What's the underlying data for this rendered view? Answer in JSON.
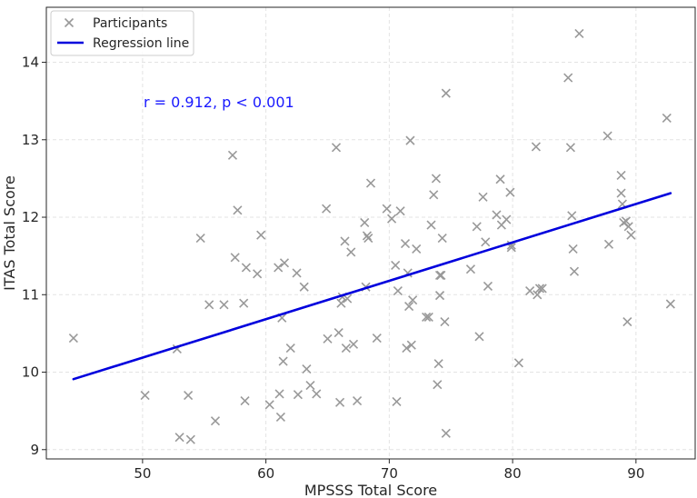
{
  "chart_data": {
    "type": "scatter",
    "xlabel": "MPSSS Total Score",
    "ylabel": "ITAS Total Score",
    "xlim": [
      42.2,
      94.8
    ],
    "ylim": [
      8.88,
      14.71
    ],
    "xticks": [
      50,
      60,
      70,
      80,
      90
    ],
    "yticks": [
      9,
      10,
      11,
      12,
      13,
      14
    ],
    "grid": true,
    "legend_position": "top-left",
    "annotation": "r = 0.912, p < 0.001",
    "colors": {
      "points": "#999999",
      "line": "#0000dd",
      "annotation": "#1a1aff"
    },
    "series": [
      {
        "name": "Participants",
        "marker": "x",
        "points": [
          [
            44.4,
            10.44
          ],
          [
            50.2,
            9.7
          ],
          [
            52.8,
            10.3
          ],
          [
            53.0,
            9.16
          ],
          [
            53.7,
            9.7
          ],
          [
            53.9,
            9.13
          ],
          [
            54.7,
            11.73
          ],
          [
            55.4,
            10.87
          ],
          [
            55.9,
            9.37
          ],
          [
            56.6,
            10.87
          ],
          [
            57.3,
            12.8
          ],
          [
            57.5,
            11.48
          ],
          [
            57.7,
            12.09
          ],
          [
            58.2,
            10.89
          ],
          [
            58.3,
            9.63
          ],
          [
            58.4,
            11.35
          ],
          [
            59.3,
            11.27
          ],
          [
            59.6,
            11.77
          ],
          [
            60.3,
            9.58
          ],
          [
            61.0,
            11.35
          ],
          [
            61.1,
            9.72
          ],
          [
            61.2,
            9.42
          ],
          [
            61.3,
            10.7
          ],
          [
            61.4,
            10.14
          ],
          [
            61.5,
            11.41
          ],
          [
            62.0,
            10.31
          ],
          [
            62.5,
            11.28
          ],
          [
            62.6,
            9.71
          ],
          [
            63.1,
            11.1
          ],
          [
            63.3,
            10.04
          ],
          [
            63.6,
            9.83
          ],
          [
            64.1,
            9.72
          ],
          [
            64.9,
            12.11
          ],
          [
            65.0,
            10.43
          ],
          [
            65.7,
            12.9
          ],
          [
            65.9,
            10.51
          ],
          [
            66.0,
            9.61
          ],
          [
            66.1,
            10.89
          ],
          [
            66.2,
            10.97
          ],
          [
            66.4,
            11.69
          ],
          [
            66.5,
            10.31
          ],
          [
            66.6,
            10.95
          ],
          [
            66.9,
            11.55
          ],
          [
            67.1,
            10.36
          ],
          [
            67.4,
            9.63
          ],
          [
            68.0,
            11.93
          ],
          [
            68.1,
            11.1
          ],
          [
            68.2,
            11.76
          ],
          [
            68.3,
            11.73
          ],
          [
            68.5,
            12.44
          ],
          [
            69.0,
            10.44
          ],
          [
            69.8,
            12.11
          ],
          [
            70.2,
            11.98
          ],
          [
            70.5,
            11.38
          ],
          [
            70.6,
            9.62
          ],
          [
            70.7,
            11.05
          ],
          [
            70.9,
            12.08
          ],
          [
            71.3,
            11.66
          ],
          [
            71.4,
            10.31
          ],
          [
            71.5,
            11.28
          ],
          [
            71.6,
            10.85
          ],
          [
            71.7,
            12.99
          ],
          [
            71.8,
            10.35
          ],
          [
            71.9,
            10.93
          ],
          [
            72.2,
            11.59
          ],
          [
            73.0,
            10.71
          ],
          [
            73.2,
            10.71
          ],
          [
            73.4,
            11.9
          ],
          [
            73.6,
            12.29
          ],
          [
            73.8,
            12.5
          ],
          [
            73.9,
            9.84
          ],
          [
            74.0,
            10.11
          ],
          [
            74.1,
            10.99
          ],
          [
            74.1,
            11.25
          ],
          [
            74.2,
            11.25
          ],
          [
            74.3,
            11.73
          ],
          [
            74.5,
            10.65
          ],
          [
            74.6,
            9.21
          ],
          [
            74.6,
            13.6
          ],
          [
            76.6,
            11.33
          ],
          [
            77.1,
            11.88
          ],
          [
            77.3,
            10.46
          ],
          [
            77.6,
            12.26
          ],
          [
            77.8,
            11.68
          ],
          [
            78.0,
            11.11
          ],
          [
            78.7,
            12.03
          ],
          [
            79.0,
            12.49
          ],
          [
            79.1,
            11.9
          ],
          [
            79.5,
            11.97
          ],
          [
            79.8,
            12.32
          ],
          [
            79.9,
            11.64
          ],
          [
            79.9,
            11.61
          ],
          [
            80.5,
            10.12
          ],
          [
            81.4,
            11.05
          ],
          [
            81.9,
            12.91
          ],
          [
            82.0,
            11.0
          ],
          [
            82.2,
            11.08
          ],
          [
            82.4,
            11.08
          ],
          [
            84.5,
            13.8
          ],
          [
            84.7,
            12.9
          ],
          [
            84.8,
            12.02
          ],
          [
            84.9,
            11.59
          ],
          [
            85.0,
            11.3
          ],
          [
            85.4,
            14.37
          ],
          [
            87.7,
            13.05
          ],
          [
            87.8,
            11.65
          ],
          [
            88.8,
            12.54
          ],
          [
            88.8,
            12.31
          ],
          [
            88.9,
            12.17
          ],
          [
            89.0,
            11.93
          ],
          [
            89.2,
            11.95
          ],
          [
            89.3,
            10.65
          ],
          [
            89.4,
            11.88
          ],
          [
            89.6,
            11.77
          ],
          [
            92.5,
            13.28
          ],
          [
            92.8,
            10.88
          ]
        ]
      },
      {
        "name": "Regression line",
        "type": "line",
        "points": [
          [
            44.4,
            9.91
          ],
          [
            92.8,
            12.31
          ]
        ]
      }
    ]
  }
}
